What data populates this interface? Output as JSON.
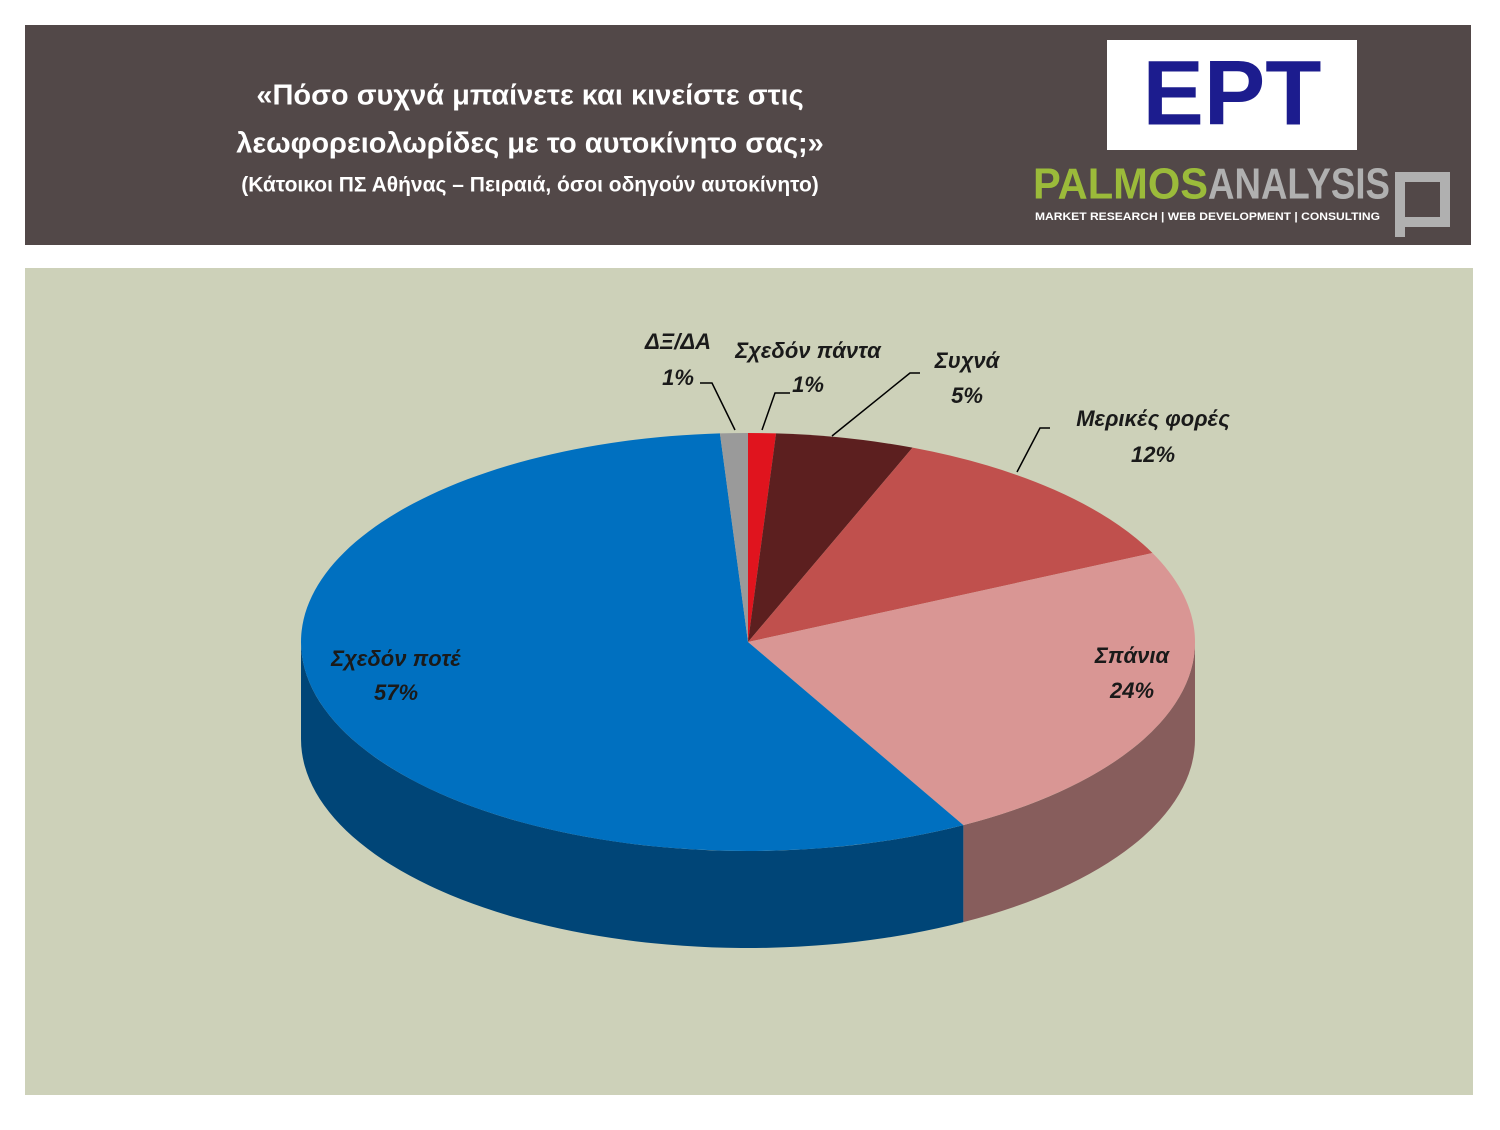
{
  "chart_data": {
    "type": "pie3d",
    "title": [
      "«Πόσο συχνά μπαίνετε και κινείστε στις",
      "λεωφορειολωρίδες με το αυτοκίνητο σας;»"
    ],
    "subtitle": "(Κάτοικοι ΠΣ Αθήνας – Πειραιά, όσοι οδηγούν αυτοκίνητο)",
    "categories": [
      "Σχεδόν πάντα",
      "Συχνά",
      "Μερικές φορές",
      "Σπάνια",
      "Σχεδόν ποτέ",
      "ΔΞ/ΔΑ"
    ],
    "values": [
      1,
      5,
      12,
      24,
      57,
      1
    ],
    "value_labels": [
      "1%",
      "5%",
      "12%",
      "24%",
      "57%",
      "1%"
    ],
    "colors": [
      "#e0141e",
      "#5c1f1f",
      "#c0504d",
      "#d99694",
      "#0070c0",
      "#9a9a9a"
    ]
  },
  "logos": {
    "ert": "ΕΡΤ",
    "palmos": "PALMOS",
    "analysis": "ANALYSIS",
    "tagline": "MARKET RESEARCH | WEB DEVELOPMENT | CONSULTING"
  }
}
